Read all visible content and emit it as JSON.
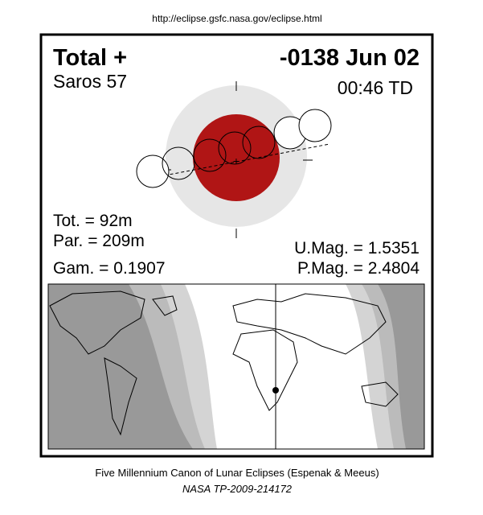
{
  "header": {
    "url": "http://eclipse.gsfc.nasa.gov/eclipse.html"
  },
  "eclipse": {
    "type": "Total  +",
    "date": "-0138 Jun 02",
    "saros": "Saros  57",
    "time": "00:46 TD",
    "totality": "Tot. =  92m",
    "partial": "Par. = 209m",
    "gamma": "Gam. = 0.1907",
    "umbral_mag": "U.Mag. = 1.5351",
    "penumbral_mag": "P.Mag. = 2.4804"
  },
  "footer": {
    "canon": "Five Millennium Canon of Lunar Eclipses (Espenak & Meeus)",
    "reference": "NASA TP-2009-214172"
  }
}
